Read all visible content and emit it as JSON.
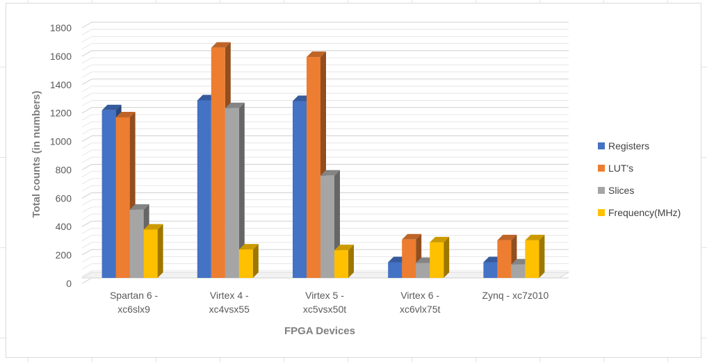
{
  "chart_data": {
    "type": "bar",
    "title": "",
    "xlabel": "FPGA Devices",
    "ylabel": "Total counts (in numbers)",
    "ylim": [
      0,
      1800
    ],
    "yticks": [
      0,
      200,
      400,
      600,
      800,
      1000,
      1200,
      1400,
      1600,
      1800
    ],
    "categories": [
      [
        "Spartan 6 -",
        "xc6slx9"
      ],
      [
        "Virtex 4 -",
        "xc4vsx55"
      ],
      [
        "Virtex 5 -",
        "xc5vsx50t"
      ],
      [
        "Virtex 6 -",
        "xc6vlx75t"
      ],
      [
        "Zynq - xc7z010"
      ]
    ],
    "series": [
      {
        "name": "Registers",
        "color": "#4472C4",
        "values": [
          1180,
          1250,
          1245,
          110,
          110
        ]
      },
      {
        "name": "LUT's",
        "color": "#ED7D31",
        "values": [
          1130,
          1620,
          1555,
          270,
          265
        ]
      },
      {
        "name": "Slices",
        "color": "#A5A5A5",
        "values": [
          480,
          1195,
          720,
          105,
          95
        ]
      },
      {
        "name": "Frequency(MHz)",
        "color": "#FFC000",
        "values": [
          340,
          200,
          195,
          250,
          265
        ]
      }
    ],
    "grid": true,
    "legend_position": "right",
    "style": "3d-clustered-column"
  }
}
